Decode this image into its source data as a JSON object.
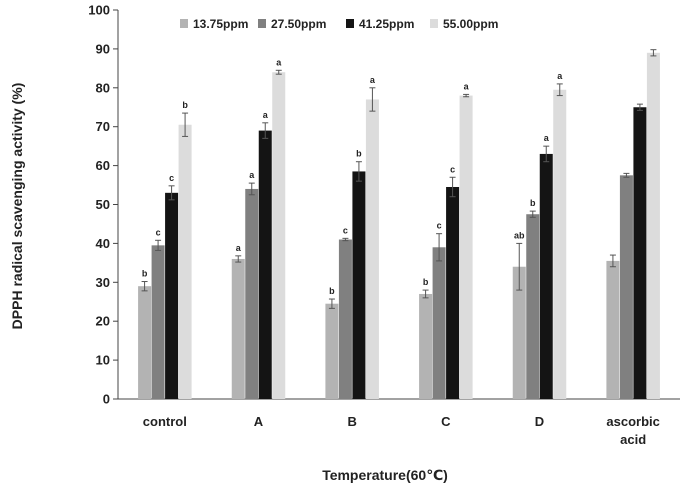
{
  "chart_data": {
    "type": "bar",
    "title": "",
    "xlabel": "Temperature(60℃)",
    "ylabel": "DPPH radical scavenging activity (%)",
    "ylim": [
      0,
      100
    ],
    "yticks": [
      0,
      10,
      20,
      30,
      40,
      50,
      60,
      70,
      80,
      90,
      100
    ],
    "grid": false,
    "legend_position": "top",
    "categories": [
      [
        "control"
      ],
      [
        "A"
      ],
      [
        "B"
      ],
      [
        "C"
      ],
      [
        "D"
      ],
      [
        "ascorbic",
        "acid"
      ]
    ],
    "series": [
      {
        "name": "13.75ppm",
        "color": "#b3b3b3",
        "values": [
          29,
          36,
          24.5,
          27,
          34,
          35.5
        ],
        "errors": [
          1.2,
          0.8,
          1.2,
          1.0,
          6.0,
          1.5
        ],
        "labels": [
          "b",
          "a",
          "b",
          "b",
          "ab",
          ""
        ]
      },
      {
        "name": "27.50ppm",
        "color": "#808080",
        "values": [
          39.5,
          54,
          41,
          39,
          47.5,
          57.5
        ],
        "errors": [
          1.3,
          1.5,
          0.3,
          3.5,
          0.8,
          0.5
        ],
        "labels": [
          "c",
          "a",
          "c",
          "c",
          "b",
          ""
        ]
      },
      {
        "name": "41.25ppm",
        "color": "#141414",
        "values": [
          53,
          69,
          58.5,
          54.5,
          63,
          75
        ],
        "errors": [
          1.8,
          2.0,
          2.5,
          2.5,
          2.0,
          0.8
        ],
        "labels": [
          "c",
          "a",
          "b",
          "c",
          "a",
          ""
        ]
      },
      {
        "name": "55.00ppm",
        "color": "#dcdcdc",
        "values": [
          70.5,
          84,
          77,
          78,
          79.5,
          89
        ],
        "errors": [
          3.0,
          0.5,
          3.0,
          0.3,
          1.5,
          0.8
        ],
        "labels": [
          "b",
          "a",
          "a",
          "a",
          "a",
          ""
        ]
      }
    ]
  }
}
